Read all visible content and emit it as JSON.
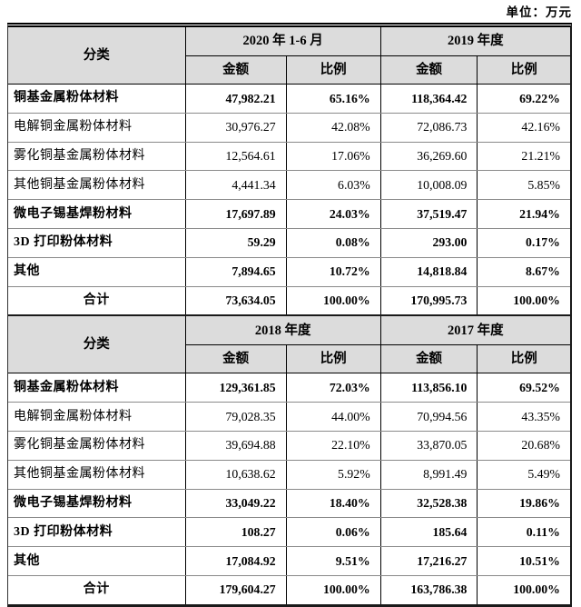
{
  "unit_label": "单位：万元",
  "colors": {
    "header_bg": "#dcdcdc",
    "border": "#000000",
    "row_separator": "#8a8a8a"
  },
  "tables": [
    {
      "category_header": "分类",
      "period_headers": [
        "2020 年 1-6 月",
        "2019 年度"
      ],
      "sub_headers": [
        "金额",
        "比例",
        "金额",
        "比例"
      ],
      "rows": [
        {
          "label": "铜基金属粉体材料",
          "bold": true,
          "total": false,
          "cells": [
            "47,982.21",
            "65.16%",
            "118,364.42",
            "69.22%"
          ]
        },
        {
          "label": "电解铜金属粉体材料",
          "bold": false,
          "total": false,
          "cells": [
            "30,976.27",
            "42.08%",
            "72,086.73",
            "42.16%"
          ]
        },
        {
          "label": "雾化铜基金属粉体材料",
          "bold": false,
          "total": false,
          "cells": [
            "12,564.61",
            "17.06%",
            "36,269.60",
            "21.21%"
          ]
        },
        {
          "label": "其他铜基金属粉体材料",
          "bold": false,
          "total": false,
          "cells": [
            "4,441.34",
            "6.03%",
            "10,008.09",
            "5.85%"
          ]
        },
        {
          "label": "微电子锡基焊粉材料",
          "bold": true,
          "total": false,
          "cells": [
            "17,697.89",
            "24.03%",
            "37,519.47",
            "21.94%"
          ]
        },
        {
          "label": "3D 打印粉体材料",
          "bold": true,
          "total": false,
          "cells": [
            "59.29",
            "0.08%",
            "293.00",
            "0.17%"
          ]
        },
        {
          "label": "其他",
          "bold": true,
          "total": false,
          "cells": [
            "7,894.65",
            "10.72%",
            "14,818.84",
            "8.67%"
          ]
        },
        {
          "label": "合计",
          "bold": true,
          "total": true,
          "cells": [
            "73,634.05",
            "100.00%",
            "170,995.73",
            "100.00%"
          ]
        }
      ]
    },
    {
      "category_header": "分类",
      "period_headers": [
        "2018 年度",
        "2017 年度"
      ],
      "sub_headers": [
        "金额",
        "比例",
        "金额",
        "比例"
      ],
      "rows": [
        {
          "label": "铜基金属粉体材料",
          "bold": true,
          "total": false,
          "cells": [
            "129,361.85",
            "72.03%",
            "113,856.10",
            "69.52%"
          ]
        },
        {
          "label": "电解铜金属粉体材料",
          "bold": false,
          "total": false,
          "cells": [
            "79,028.35",
            "44.00%",
            "70,994.56",
            "43.35%"
          ]
        },
        {
          "label": "雾化铜基金属粉体材料",
          "bold": false,
          "total": false,
          "cells": [
            "39,694.88",
            "22.10%",
            "33,870.05",
            "20.68%"
          ]
        },
        {
          "label": "其他铜基金属粉体材料",
          "bold": false,
          "total": false,
          "cells": [
            "10,638.62",
            "5.92%",
            "8,991.49",
            "5.49%"
          ]
        },
        {
          "label": "微电子锡基焊粉材料",
          "bold": true,
          "total": false,
          "cells": [
            "33,049.22",
            "18.40%",
            "32,528.38",
            "19.86%"
          ]
        },
        {
          "label": "3D 打印粉体材料",
          "bold": true,
          "total": false,
          "cells": [
            "108.27",
            "0.06%",
            "185.64",
            "0.11%"
          ]
        },
        {
          "label": "其他",
          "bold": true,
          "total": false,
          "cells": [
            "17,084.92",
            "9.51%",
            "17,216.27",
            "10.51%"
          ]
        },
        {
          "label": "合计",
          "bold": true,
          "total": true,
          "cells": [
            "179,604.27",
            "100.00%",
            "163,786.38",
            "100.00%"
          ]
        }
      ]
    }
  ]
}
